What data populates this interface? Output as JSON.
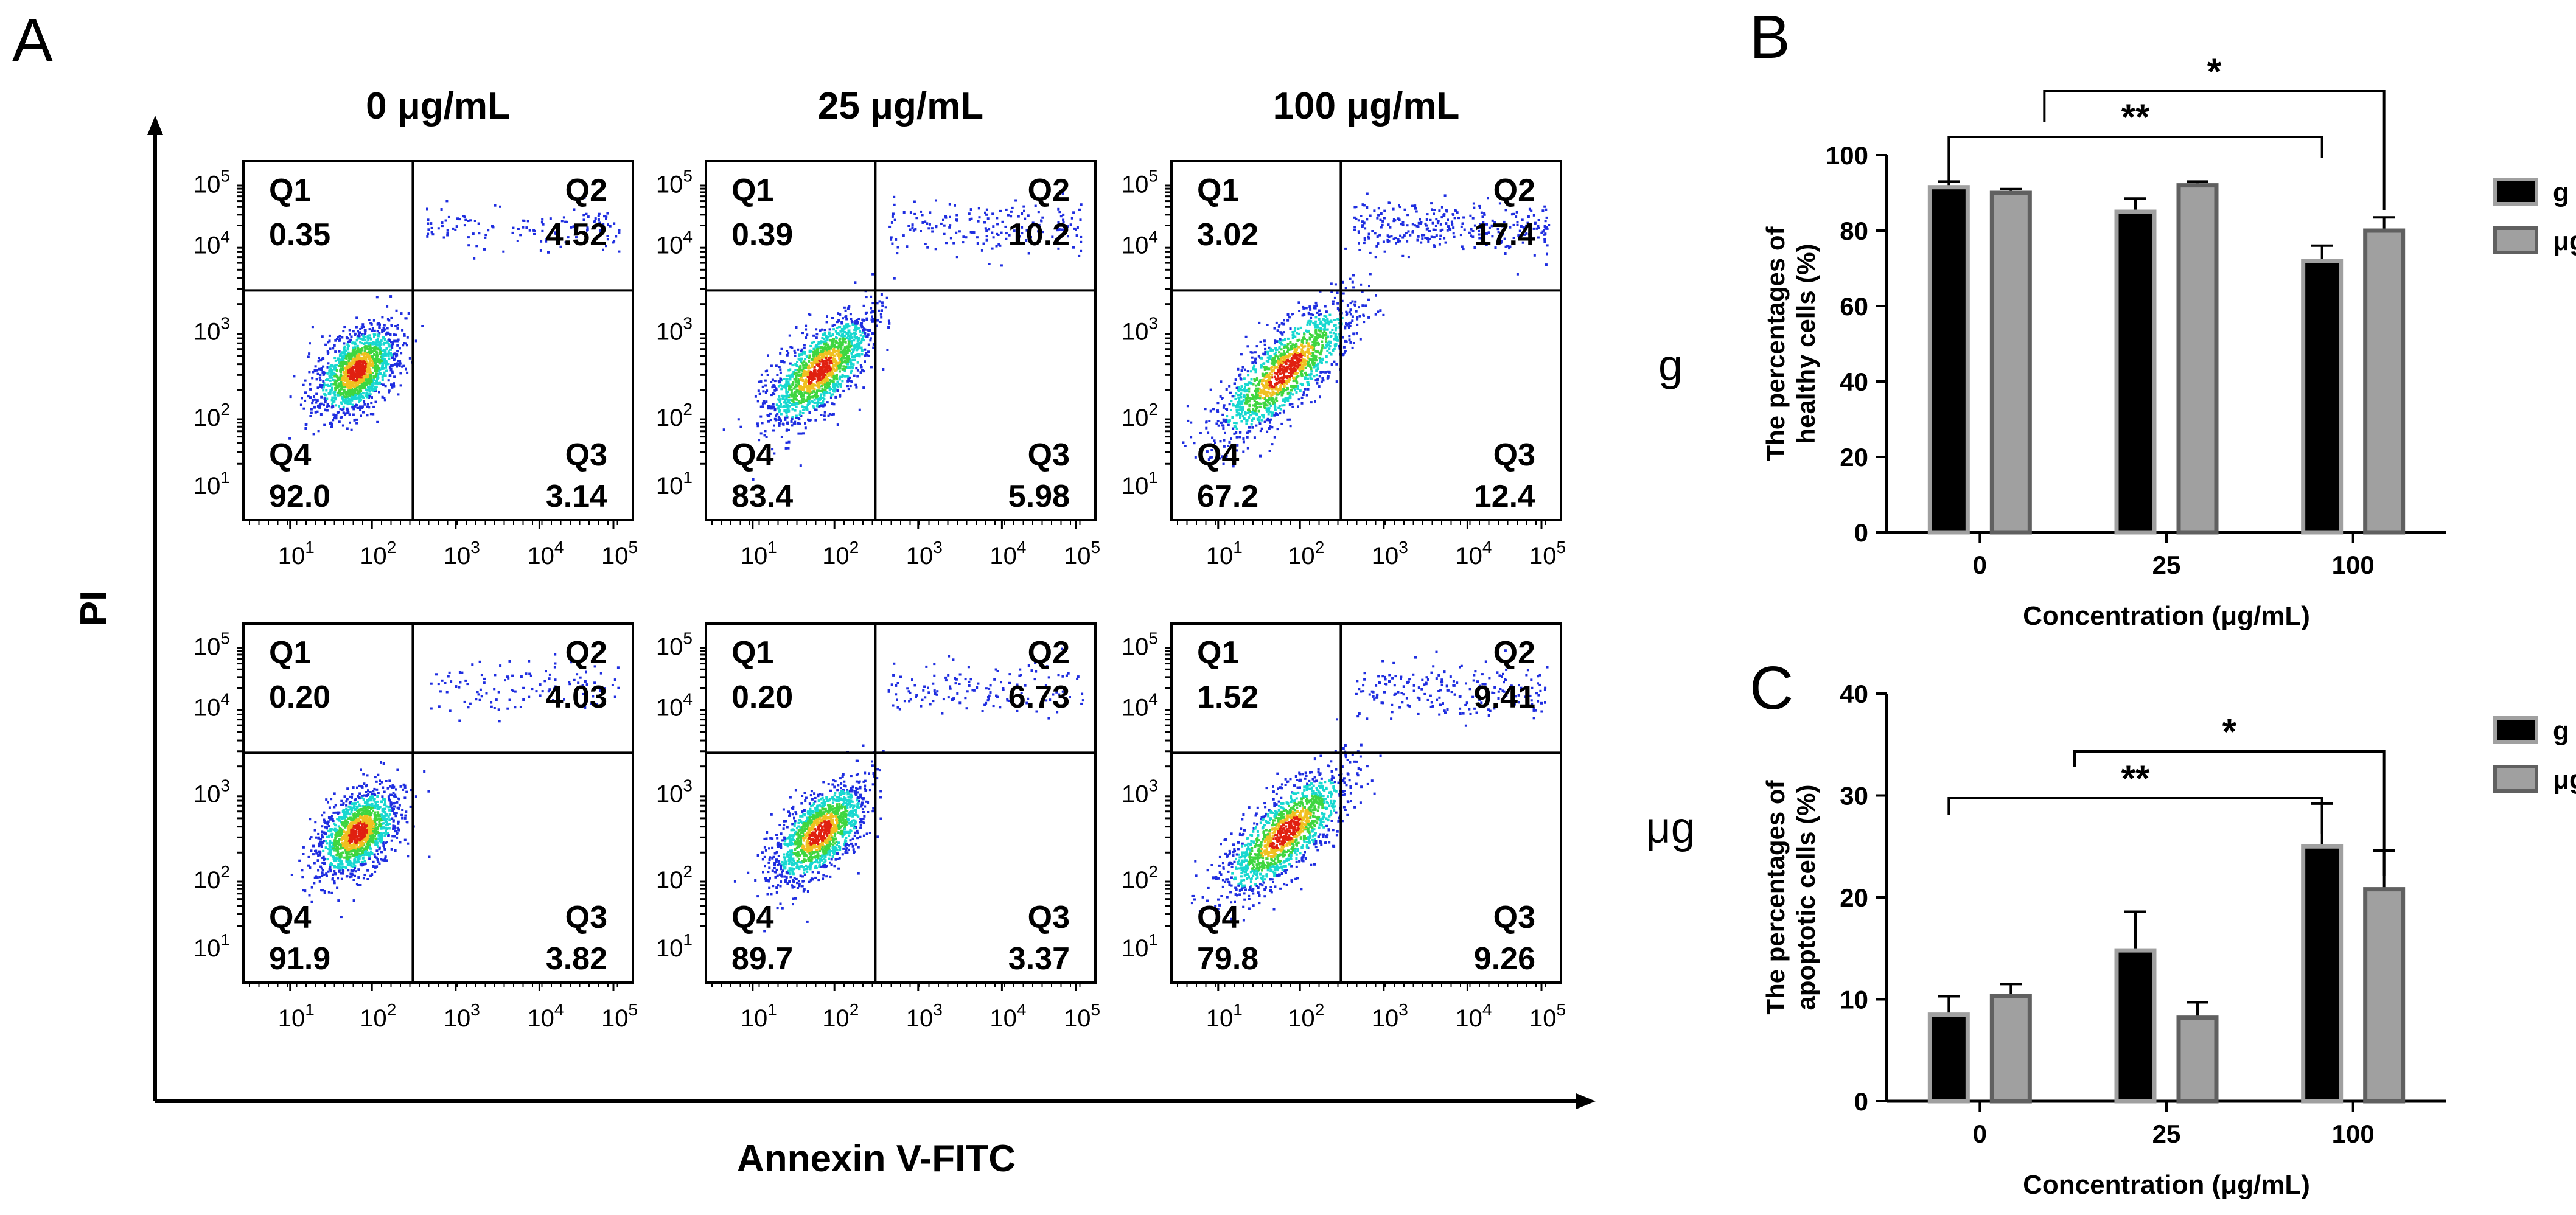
{
  "panel_labels": {
    "a": "A",
    "b": "B",
    "c": "C"
  },
  "flow": {
    "column_titles": [
      "0 μg/mL",
      "25 μg/mL",
      "100 μg/mL"
    ],
    "row_labels": [
      "g",
      "μg"
    ],
    "y_axis_label": "PI",
    "x_axis_label": "Annexin V-FITC",
    "quadrant_names": [
      "Q1",
      "Q2",
      "Q4",
      "Q3"
    ],
    "tick_base": "10",
    "tick_exponents": [
      "1",
      "2",
      "3",
      "4",
      "5"
    ],
    "plots": [
      {
        "row": 0,
        "col": 0,
        "q1": "0.35",
        "q2": "4.52",
        "q3": "3.14",
        "q4": "92.0",
        "spread": 0.55,
        "upper": 0.25
      },
      {
        "row": 0,
        "col": 1,
        "q1": "0.39",
        "q2": "10.2",
        "q3": "5.98",
        "q4": "83.4",
        "spread": 0.75,
        "upper": 0.45
      },
      {
        "row": 0,
        "col": 2,
        "q1": "3.02",
        "q2": "17.4",
        "q3": "12.4",
        "q4": "67.2",
        "spread": 1.0,
        "upper": 0.9
      },
      {
        "row": 1,
        "col": 0,
        "q1": "0.20",
        "q2": "4.03",
        "q3": "3.82",
        "q4": "91.9",
        "spread": 0.55,
        "upper": 0.22
      },
      {
        "row": 1,
        "col": 1,
        "q1": "0.20",
        "q2": "6.73",
        "q3": "3.37",
        "q4": "89.7",
        "spread": 0.65,
        "upper": 0.3
      },
      {
        "row": 1,
        "col": 2,
        "q1": "1.52",
        "q2": "9.41",
        "q3": "9.26",
        "q4": "79.8",
        "spread": 0.9,
        "upper": 0.55
      }
    ],
    "colors": {
      "sparse": "#1f2ee0",
      "mid": "#18d8d0",
      "dense": "#3fd640",
      "hot": "#f0c020",
      "core": "#e02010"
    }
  },
  "chart_data": [
    {
      "type": "bar",
      "panel": "B",
      "categories": [
        "0",
        "25",
        "100"
      ],
      "series": [
        {
          "name": "g",
          "values": [
            91.5,
            85.0,
            72.0
          ],
          "errors": [
            1.5,
            3.5,
            4.0
          ],
          "color": "#000000"
        },
        {
          "name": "μg",
          "values": [
            90.0,
            92.0,
            80.0
          ],
          "errors": [
            1.0,
            1.0,
            3.5
          ],
          "color": "#a0a0a0"
        }
      ],
      "ylabel": "The percentages of healthy cells (%)",
      "xlabel": "Concentration (μg/mL)",
      "ylim": [
        0,
        100
      ],
      "yticks": [
        "0",
        "20",
        "40",
        "60",
        "80",
        "100"
      ],
      "legend_position": "right",
      "significance": [
        {
          "label": "**",
          "from": "0",
          "to": "100 (g)"
        },
        {
          "label": "*",
          "from": "0",
          "to": "100 (μg)"
        }
      ]
    },
    {
      "type": "bar",
      "panel": "C",
      "categories": [
        "0",
        "25",
        "100"
      ],
      "series": [
        {
          "name": "g",
          "values": [
            8.5,
            14.8,
            25.0
          ],
          "errors": [
            1.8,
            3.8,
            4.2
          ],
          "color": "#000000"
        },
        {
          "name": "μg",
          "values": [
            10.3,
            8.2,
            20.8
          ],
          "errors": [
            1.2,
            1.5,
            3.8
          ],
          "color": "#a0a0a0"
        }
      ],
      "ylabel": "The percentages of apoptotic cells (%)",
      "xlabel": "Concentration (μg/mL)",
      "ylim": [
        0,
        40
      ],
      "yticks": [
        "0",
        "10",
        "20",
        "30",
        "40"
      ],
      "legend_position": "right",
      "significance": [
        {
          "label": "**",
          "from": "0",
          "to": "100 (g)"
        },
        {
          "label": "*",
          "from": "25",
          "to": "100 (μg)"
        }
      ]
    }
  ]
}
